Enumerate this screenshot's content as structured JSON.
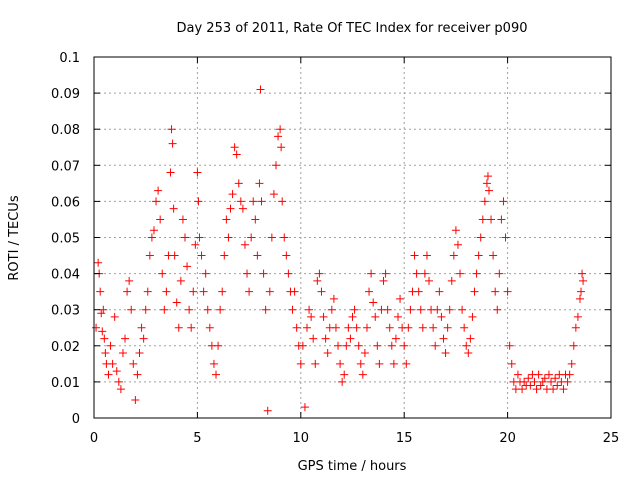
{
  "chart_data": {
    "type": "scatter",
    "title": "Day 253 of 2011, Rate Of TEC Index for receiver p090",
    "xlabel": "GPS time / hours",
    "ylabel": "ROTI / TECUs",
    "xlim": [
      0,
      25
    ],
    "ylim": [
      0,
      0.1
    ],
    "xticks": [
      "0",
      "5",
      "10",
      "15",
      "20",
      "25"
    ],
    "yticks": [
      "0",
      "0.01",
      "0.02",
      "0.03",
      "0.04",
      "0.05",
      "0.06",
      "0.07",
      "0.08",
      "0.09",
      "0.1"
    ],
    "grid": true,
    "marker": "+",
    "color": "#ff0000",
    "series": [
      {
        "points": [
          [
            0.1,
            0.025
          ],
          [
            0.2,
            0.043
          ],
          [
            0.25,
            0.04
          ],
          [
            0.3,
            0.035
          ],
          [
            0.35,
            0.029
          ],
          [
            0.4,
            0.024
          ],
          [
            0.45,
            0.03
          ],
          [
            0.5,
            0.022
          ],
          [
            0.55,
            0.018
          ],
          [
            0.6,
            0.015
          ],
          [
            0.7,
            0.012
          ],
          [
            0.8,
            0.02
          ],
          [
            0.9,
            0.015
          ],
          [
            1.0,
            0.028
          ],
          [
            1.1,
            0.013
          ],
          [
            1.2,
            0.01
          ],
          [
            1.3,
            0.008
          ],
          [
            1.4,
            0.018
          ],
          [
            1.5,
            0.022
          ],
          [
            1.6,
            0.035
          ],
          [
            1.7,
            0.038
          ],
          [
            1.8,
            0.03
          ],
          [
            1.9,
            0.015
          ],
          [
            2.0,
            0.005
          ],
          [
            2.1,
            0.012
          ],
          [
            2.2,
            0.018
          ],
          [
            2.3,
            0.025
          ],
          [
            2.4,
            0.022
          ],
          [
            2.5,
            0.03
          ],
          [
            2.6,
            0.035
          ],
          [
            2.7,
            0.045
          ],
          [
            2.8,
            0.05
          ],
          [
            2.9,
            0.052
          ],
          [
            3.0,
            0.06
          ],
          [
            3.1,
            0.063
          ],
          [
            3.2,
            0.055
          ],
          [
            3.3,
            0.04
          ],
          [
            3.4,
            0.03
          ],
          [
            3.5,
            0.035
          ],
          [
            3.6,
            0.045
          ],
          [
            3.7,
            0.068
          ],
          [
            3.75,
            0.08
          ],
          [
            3.8,
            0.076
          ],
          [
            3.85,
            0.058
          ],
          [
            3.9,
            0.045
          ],
          [
            4.0,
            0.032
          ],
          [
            4.1,
            0.025
          ],
          [
            4.2,
            0.038
          ],
          [
            4.3,
            0.055
          ],
          [
            4.4,
            0.05
          ],
          [
            4.5,
            0.042
          ],
          [
            4.6,
            0.03
          ],
          [
            4.7,
            0.025
          ],
          [
            4.8,
            0.035
          ],
          [
            4.9,
            0.048
          ],
          [
            5.0,
            0.068
          ],
          [
            5.05,
            0.06
          ],
          [
            5.1,
            0.05
          ],
          [
            5.2,
            0.045
          ],
          [
            5.3,
            0.035
          ],
          [
            5.4,
            0.04
          ],
          [
            5.5,
            0.03
          ],
          [
            5.6,
            0.025
          ],
          [
            5.7,
            0.02
          ],
          [
            5.8,
            0.015
          ],
          [
            5.9,
            0.012
          ],
          [
            6.0,
            0.02
          ],
          [
            6.1,
            0.03
          ],
          [
            6.2,
            0.035
          ],
          [
            6.3,
            0.045
          ],
          [
            6.4,
            0.055
          ],
          [
            6.5,
            0.05
          ],
          [
            6.6,
            0.058
          ],
          [
            6.7,
            0.062
          ],
          [
            6.8,
            0.075
          ],
          [
            6.9,
            0.073
          ],
          [
            7.0,
            0.065
          ],
          [
            7.1,
            0.06
          ],
          [
            7.2,
            0.058
          ],
          [
            7.3,
            0.048
          ],
          [
            7.4,
            0.04
          ],
          [
            7.5,
            0.035
          ],
          [
            7.6,
            0.05
          ],
          [
            7.7,
            0.06
          ],
          [
            7.8,
            0.055
          ],
          [
            7.9,
            0.045
          ],
          [
            8.0,
            0.065
          ],
          [
            8.05,
            0.091
          ],
          [
            8.1,
            0.06
          ],
          [
            8.2,
            0.04
          ],
          [
            8.3,
            0.03
          ],
          [
            8.4,
            0.002
          ],
          [
            8.5,
            0.035
          ],
          [
            8.6,
            0.05
          ],
          [
            8.7,
            0.062
          ],
          [
            8.8,
            0.07
          ],
          [
            8.9,
            0.078
          ],
          [
            9.0,
            0.08
          ],
          [
            9.05,
            0.075
          ],
          [
            9.1,
            0.06
          ],
          [
            9.2,
            0.05
          ],
          [
            9.3,
            0.045
          ],
          [
            9.4,
            0.04
          ],
          [
            9.5,
            0.035
          ],
          [
            9.6,
            0.03
          ],
          [
            9.7,
            0.035
          ],
          [
            9.8,
            0.025
          ],
          [
            9.9,
            0.02
          ],
          [
            10.0,
            0.015
          ],
          [
            10.1,
            0.02
          ],
          [
            10.2,
            0.003
          ],
          [
            10.3,
            0.025
          ],
          [
            10.4,
            0.03
          ],
          [
            10.5,
            0.028
          ],
          [
            10.6,
            0.022
          ],
          [
            10.7,
            0.015
          ],
          [
            10.8,
            0.038
          ],
          [
            10.9,
            0.04
          ],
          [
            11.0,
            0.035
          ],
          [
            11.1,
            0.028
          ],
          [
            11.2,
            0.022
          ],
          [
            11.3,
            0.018
          ],
          [
            11.4,
            0.025
          ],
          [
            11.5,
            0.03
          ],
          [
            11.6,
            0.033
          ],
          [
            11.7,
            0.025
          ],
          [
            11.8,
            0.02
          ],
          [
            11.9,
            0.015
          ],
          [
            12.0,
            0.01
          ],
          [
            12.1,
            0.012
          ],
          [
            12.2,
            0.02
          ],
          [
            12.3,
            0.025
          ],
          [
            12.4,
            0.022
          ],
          [
            12.5,
            0.028
          ],
          [
            12.6,
            0.03
          ],
          [
            12.7,
            0.025
          ],
          [
            12.8,
            0.02
          ],
          [
            12.9,
            0.015
          ],
          [
            13.0,
            0.012
          ],
          [
            13.1,
            0.018
          ],
          [
            13.2,
            0.025
          ],
          [
            13.3,
            0.035
          ],
          [
            13.4,
            0.04
          ],
          [
            13.5,
            0.032
          ],
          [
            13.6,
            0.028
          ],
          [
            13.7,
            0.02
          ],
          [
            13.8,
            0.015
          ],
          [
            13.9,
            0.03
          ],
          [
            14.0,
            0.038
          ],
          [
            14.1,
            0.04
          ],
          [
            14.2,
            0.03
          ],
          [
            14.3,
            0.025
          ],
          [
            14.4,
            0.02
          ],
          [
            14.5,
            0.015
          ],
          [
            14.6,
            0.022
          ],
          [
            14.7,
            0.028
          ],
          [
            14.8,
            0.033
          ],
          [
            14.9,
            0.025
          ],
          [
            15.0,
            0.02
          ],
          [
            15.1,
            0.015
          ],
          [
            15.2,
            0.025
          ],
          [
            15.3,
            0.03
          ],
          [
            15.4,
            0.035
          ],
          [
            15.5,
            0.045
          ],
          [
            15.6,
            0.04
          ],
          [
            15.7,
            0.035
          ],
          [
            15.8,
            0.03
          ],
          [
            15.9,
            0.025
          ],
          [
            16.0,
            0.04
          ],
          [
            16.1,
            0.045
          ],
          [
            16.2,
            0.038
          ],
          [
            16.3,
            0.03
          ],
          [
            16.4,
            0.025
          ],
          [
            16.5,
            0.02
          ],
          [
            16.6,
            0.03
          ],
          [
            16.7,
            0.035
          ],
          [
            16.8,
            0.028
          ],
          [
            16.9,
            0.022
          ],
          [
            17.0,
            0.018
          ],
          [
            17.1,
            0.025
          ],
          [
            17.2,
            0.03
          ],
          [
            17.3,
            0.038
          ],
          [
            17.4,
            0.045
          ],
          [
            17.5,
            0.052
          ],
          [
            17.6,
            0.048
          ],
          [
            17.7,
            0.04
          ],
          [
            17.8,
            0.03
          ],
          [
            17.9,
            0.025
          ],
          [
            18.0,
            0.02
          ],
          [
            18.1,
            0.018
          ],
          [
            18.2,
            0.022
          ],
          [
            18.3,
            0.028
          ],
          [
            18.4,
            0.035
          ],
          [
            18.5,
            0.04
          ],
          [
            18.6,
            0.045
          ],
          [
            18.7,
            0.05
          ],
          [
            18.8,
            0.055
          ],
          [
            18.9,
            0.06
          ],
          [
            19.0,
            0.065
          ],
          [
            19.05,
            0.067
          ],
          [
            19.1,
            0.063
          ],
          [
            19.2,
            0.055
          ],
          [
            19.3,
            0.045
          ],
          [
            19.4,
            0.035
          ],
          [
            19.5,
            0.03
          ],
          [
            19.6,
            0.04
          ],
          [
            19.7,
            0.055
          ],
          [
            19.8,
            0.06
          ],
          [
            19.9,
            0.05
          ],
          [
            20.0,
            0.035
          ],
          [
            20.1,
            0.02
          ],
          [
            20.2,
            0.015
          ],
          [
            20.3,
            0.01
          ],
          [
            20.4,
            0.008
          ],
          [
            20.5,
            0.012
          ],
          [
            20.6,
            0.01
          ],
          [
            20.7,
            0.008
          ],
          [
            20.8,
            0.01
          ],
          [
            20.9,
            0.009
          ],
          [
            21.0,
            0.011
          ],
          [
            21.1,
            0.009
          ],
          [
            21.2,
            0.012
          ],
          [
            21.3,
            0.01
          ],
          [
            21.4,
            0.008
          ],
          [
            21.5,
            0.012
          ],
          [
            21.6,
            0.009
          ],
          [
            21.7,
            0.01
          ],
          [
            21.8,
            0.011
          ],
          [
            21.9,
            0.008
          ],
          [
            22.0,
            0.012
          ],
          [
            22.1,
            0.01
          ],
          [
            22.2,
            0.008
          ],
          [
            22.3,
            0.011
          ],
          [
            22.4,
            0.009
          ],
          [
            22.5,
            0.012
          ],
          [
            22.6,
            0.01
          ],
          [
            22.7,
            0.008
          ],
          [
            22.8,
            0.012
          ],
          [
            22.9,
            0.01
          ],
          [
            23.0,
            0.012
          ],
          [
            23.1,
            0.015
          ],
          [
            23.2,
            0.02
          ],
          [
            23.3,
            0.025
          ],
          [
            23.4,
            0.028
          ],
          [
            23.5,
            0.033
          ],
          [
            23.55,
            0.035
          ],
          [
            23.6,
            0.04
          ],
          [
            23.65,
            0.038
          ]
        ]
      }
    ]
  }
}
